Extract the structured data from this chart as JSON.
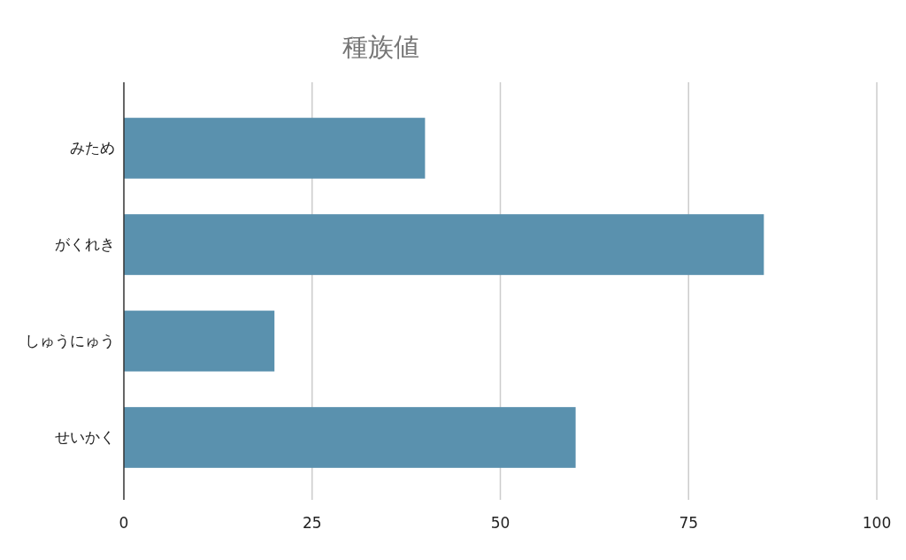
{
  "chart_data": {
    "type": "bar",
    "title": "種族値",
    "orientation": "horizontal",
    "categories": [
      "みため",
      "がくれき",
      "しゅうにゅう",
      "せいかく"
    ],
    "values": [
      40,
      85,
      20,
      60
    ],
    "color": "#5a91ae",
    "xlim": [
      0,
      100
    ],
    "xticks": [
      0,
      25,
      50,
      75,
      100
    ],
    "grid": "x"
  }
}
